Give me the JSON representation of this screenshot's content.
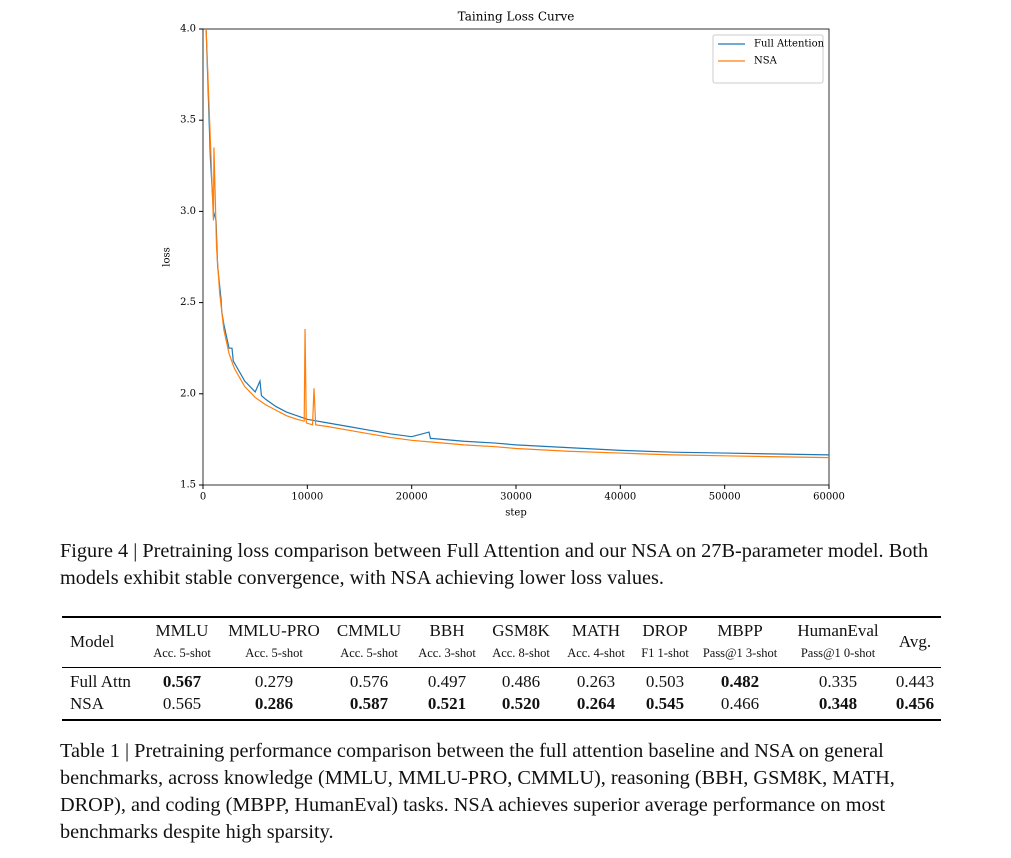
{
  "chart_data": {
    "type": "line",
    "title": "Taining Loss Curve",
    "x_label": "step",
    "y_label": "loss",
    "xlim": [
      0,
      60000
    ],
    "ylim": [
      1.5,
      4.0
    ],
    "xticks": [
      0,
      10000,
      20000,
      30000,
      40000,
      50000,
      60000
    ],
    "yticks": [
      1.5,
      {
        "value": 2,
        "label": "2.0"
      },
      2.5,
      {
        "value": 3,
        "label": "3.0"
      },
      3.5,
      {
        "value": 4,
        "label": "4.0"
      }
    ],
    "legend": "upper right",
    "grid": false,
    "series": [
      {
        "name": "Full Attention",
        "color": "#1f77b4",
        "x": [
          300,
          700,
          1000,
          1250,
          1400,
          1725,
          1800,
          2000,
          2500,
          2780,
          2900,
          3000,
          4000,
          5000,
          5460,
          5600,
          6000,
          7000,
          8000,
          9000,
          10000,
          12000,
          14000,
          16000,
          18000,
          20000,
          21660,
          21800,
          22000,
          25000,
          28000,
          30000,
          35000,
          40000,
          45000,
          50000,
          55000,
          60000
        ],
        "values": [
          4.0,
          3.3,
          3.0,
          2.95,
          2.7,
          2.52,
          2.45,
          2.38,
          2.25,
          2.25,
          2.18,
          2.17,
          2.07,
          2.01,
          2.07,
          1.99,
          1.97,
          1.93,
          1.9,
          1.88,
          1.86,
          1.84,
          1.82,
          1.8,
          1.78,
          1.765,
          1.79,
          1.755,
          1.755,
          1.74,
          1.73,
          1.72,
          1.705,
          1.69,
          1.68,
          1.675,
          1.67,
          1.665
        ]
      },
      {
        "name": "NSA",
        "color": "#ff7f0e",
        "x": [
          300,
          700,
          1000,
          1050,
          1300,
          1600,
          2000,
          2500,
          3000,
          4000,
          5000,
          6000,
          7000,
          8000,
          9000,
          9700,
          9780,
          9900,
          10500,
          10640,
          10800,
          12000,
          14000,
          16000,
          18000,
          20000,
          22000,
          25000,
          28000,
          30000,
          35000,
          40000,
          45000,
          50000,
          55000,
          60000
        ],
        "values": [
          4.0,
          3.4,
          2.95,
          3.35,
          2.8,
          2.55,
          2.35,
          2.22,
          2.14,
          2.04,
          1.98,
          1.94,
          1.91,
          1.88,
          1.86,
          1.85,
          2.355,
          1.84,
          1.83,
          2.03,
          1.83,
          1.82,
          1.8,
          1.78,
          1.76,
          1.745,
          1.735,
          1.72,
          1.71,
          1.7,
          1.685,
          1.675,
          1.665,
          1.66,
          1.655,
          1.65
        ]
      }
    ]
  },
  "figure_caption": "Figure 4 | Pretraining loss comparison between Full Attention and our NSA on 27B-parameter model. Both models exhibit stable convergence, with NSA achieving lower loss values.",
  "table": {
    "model_header": "Model",
    "columns": [
      {
        "name": "MMLU",
        "sub": "Acc. 5-shot"
      },
      {
        "name": "MMLU-PRO",
        "sub": "Acc. 5-shot"
      },
      {
        "name": "CMMLU",
        "sub": "Acc. 5-shot"
      },
      {
        "name": "BBH",
        "sub": "Acc. 3-shot"
      },
      {
        "name": "GSM8K",
        "sub": "Acc. 8-shot"
      },
      {
        "name": "MATH",
        "sub": "Acc. 4-shot"
      },
      {
        "name": "DROP",
        "sub": "F1 1-shot"
      },
      {
        "name": "MBPP",
        "sub": "Pass@1 3-shot"
      },
      {
        "name": "HumanEval",
        "sub": "Pass@1 0-shot"
      },
      {
        "name": "Avg."
      }
    ],
    "rows": [
      {
        "model": "Full Attn",
        "values": [
          "0.567",
          "0.279",
          "0.576",
          "0.497",
          "0.486",
          "0.263",
          "0.503",
          "0.482",
          "0.335",
          "0.443"
        ],
        "bold": [
          0,
          7
        ]
      },
      {
        "model": "NSA",
        "values": [
          "0.565",
          "0.286",
          "0.587",
          "0.521",
          "0.520",
          "0.264",
          "0.545",
          "0.466",
          "0.348",
          "0.456"
        ],
        "bold": [
          1,
          2,
          3,
          4,
          5,
          6,
          8,
          9
        ]
      }
    ]
  },
  "table_caption": "Table 1 | Pretraining performance comparison between the full attention baseline and NSA on general benchmarks, across knowledge (MMLU, MMLU-PRO, CMMLU), reasoning (BBH, GSM8K, MATH, DROP), and coding (MBPP, HumanEval) tasks. NSA achieves superior average performance on most benchmarks despite high sparsity."
}
